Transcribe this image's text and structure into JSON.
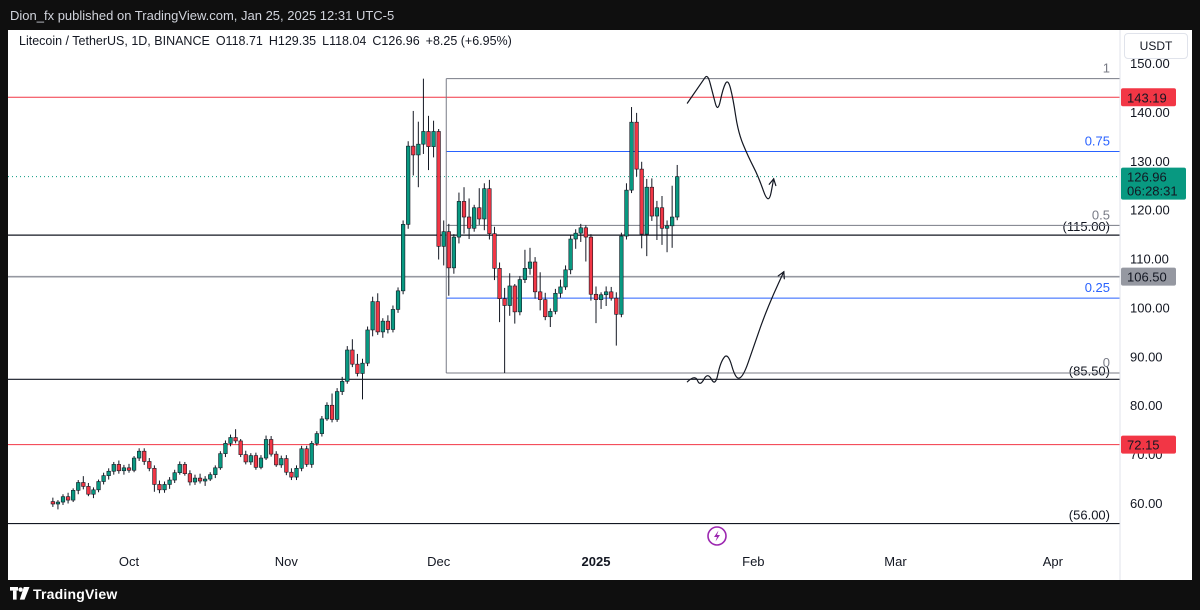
{
  "header": {
    "published": "Dion_fx published on TradingView.com, Jan 25, 2025 12:31 UTC-5"
  },
  "legend": {
    "symbol": "Litecoin / TetherUS, 1D, BINANCE",
    "open": "O118.71",
    "high": "H129.35",
    "low": "L118.04",
    "close": "C126.96",
    "change": "+8.25 (+6.95%)"
  },
  "currency": "USDT",
  "footer": {
    "brand": "TradingView"
  },
  "colors": {
    "up": "#089981",
    "down": "#f23645",
    "fib_blue": "#2962ff",
    "fib_gray": "#787b86",
    "red_line": "#f23645",
    "gray_line": "#9598a1"
  },
  "chart_data": {
    "type": "candlestick",
    "symbol": "LTCUSDT",
    "timeframe": "1D",
    "ylim": [
      55,
      152
    ],
    "y_ticks": [
      60,
      70,
      80,
      90,
      100,
      110,
      120,
      130,
      140,
      150
    ],
    "y_tick_labels": [
      "60.00",
      "70.00",
      "80.00",
      "90.00",
      "100.00",
      "110.00",
      "120.00",
      "130.00",
      "140.00",
      "150.00"
    ],
    "x_tick_labels": [
      "Oct",
      "Nov",
      "Dec",
      "2025",
      "Feb",
      "Mar",
      "Apr"
    ],
    "x_tick_days": [
      8,
      39,
      69,
      100,
      131,
      159,
      190
    ],
    "x_day_range": [
      -7,
      197
    ],
    "last_price": {
      "value": 126.96,
      "label": "126.96",
      "countdown": "06:28:31"
    },
    "horizontal_lines": [
      {
        "value": 143.19,
        "label": "143.19",
        "color": "#f23645",
        "style": "red"
      },
      {
        "value": 106.5,
        "label": "106.50",
        "color": "#9598a1",
        "style": "gray"
      },
      {
        "value": 72.15,
        "label": "72.15",
        "color": "#f23645",
        "style": "red"
      },
      {
        "value": 115.0,
        "label": "(115.00)",
        "style": "black"
      },
      {
        "value": 85.5,
        "label": "(85.50)",
        "style": "black"
      },
      {
        "value": 56.0,
        "label": "(56.00)",
        "style": "black"
      }
    ],
    "fibonacci": {
      "start_day": 70.5,
      "levels": [
        {
          "ratio": "1",
          "value": 147.0,
          "color": "#787b86"
        },
        {
          "ratio": "0.75",
          "value": 132.1,
          "color": "#2962ff"
        },
        {
          "ratio": "0.5",
          "value": 117.0,
          "color": "#787b86"
        },
        {
          "ratio": "0.25",
          "value": 102.1,
          "color": "#2962ff"
        },
        {
          "ratio": "0",
          "value": 86.8,
          "color": "#787b86"
        }
      ]
    },
    "projection_paths": [
      [
        [
          118,
          142
        ],
        [
          121,
          146.5
        ],
        [
          122,
          148
        ],
        [
          123,
          144
        ],
        [
          124,
          140
        ],
        [
          125,
          145
        ],
        [
          126,
          147
        ],
        [
          127,
          143
        ],
        [
          128,
          136
        ],
        [
          130,
          131
        ],
        [
          132,
          127
        ],
        [
          134,
          121
        ],
        [
          135,
          126.5
        ]
      ],
      [
        [
          118,
          85
        ],
        [
          119.5,
          86.5
        ],
        [
          120.5,
          84
        ],
        [
          122,
          87
        ],
        [
          123.5,
          84
        ],
        [
          124.5,
          89
        ],
        [
          126,
          91
        ],
        [
          127.5,
          85.5
        ],
        [
          129,
          86
        ],
        [
          131,
          92
        ],
        [
          133,
          98
        ],
        [
          135,
          103
        ],
        [
          137,
          107.5
        ]
      ]
    ],
    "candles": [
      [
        -7,
        60.5,
        61.3,
        59.4,
        60.0
      ],
      [
        -6,
        60.0,
        60.8,
        58.9,
        60.4
      ],
      [
        -5,
        60.4,
        62.0,
        59.8,
        61.5
      ],
      [
        -4,
        61.5,
        62.3,
        60.1,
        60.8
      ],
      [
        -3,
        60.8,
        63.2,
        60.4,
        62.8
      ],
      [
        -2,
        62.8,
        64.9,
        62.0,
        64.4
      ],
      [
        -1,
        64.4,
        65.7,
        63.0,
        63.6
      ],
      [
        0,
        63.6,
        64.3,
        61.6,
        62.0
      ],
      [
        1,
        62.0,
        63.4,
        61.2,
        62.9
      ],
      [
        2,
        62.9,
        65.0,
        62.4,
        64.6
      ],
      [
        3,
        64.6,
        66.4,
        64.0,
        65.8
      ],
      [
        4,
        65.8,
        67.3,
        65.0,
        66.7
      ],
      [
        5,
        66.7,
        68.6,
        66.0,
        68.1
      ],
      [
        6,
        68.1,
        68.9,
        66.2,
        66.8
      ],
      [
        7,
        66.8,
        68.0,
        66.0,
        67.4
      ],
      [
        8,
        67.4,
        68.2,
        66.4,
        66.9
      ],
      [
        9,
        66.9,
        69.8,
        66.5,
        69.4
      ],
      [
        10,
        69.4,
        71.4,
        68.8,
        70.8
      ],
      [
        11,
        70.8,
        71.4,
        68.0,
        68.7
      ],
      [
        12,
        68.7,
        69.4,
        66.7,
        67.3
      ],
      [
        13,
        67.3,
        67.9,
        62.5,
        64.0
      ],
      [
        14,
        64.0,
        64.8,
        62.2,
        62.9
      ],
      [
        15,
        62.9,
        64.6,
        62.3,
        64.0
      ],
      [
        16,
        64.0,
        65.5,
        63.1,
        64.9
      ],
      [
        17,
        64.9,
        67.0,
        64.3,
        66.4
      ],
      [
        18,
        66.4,
        68.7,
        66.0,
        68.1
      ],
      [
        19,
        68.1,
        68.6,
        65.8,
        66.2
      ],
      [
        20,
        66.2,
        66.9,
        63.8,
        64.5
      ],
      [
        21,
        64.5,
        66.0,
        63.9,
        65.3
      ],
      [
        22,
        65.3,
        66.2,
        64.2,
        64.7
      ],
      [
        23,
        64.7,
        65.7,
        63.7,
        65.1
      ],
      [
        24,
        65.1,
        66.5,
        64.7,
        66.0
      ],
      [
        25,
        66.0,
        67.9,
        65.3,
        67.4
      ],
      [
        26,
        67.4,
        70.8,
        67.0,
        70.3
      ],
      [
        27,
        70.3,
        73.0,
        69.6,
        72.4
      ],
      [
        28,
        72.4,
        74.2,
        71.8,
        73.6
      ],
      [
        29,
        73.6,
        75.3,
        72.4,
        72.9
      ],
      [
        30,
        72.9,
        73.3,
        69.6,
        70.1
      ],
      [
        31,
        70.1,
        70.9,
        68.1,
        68.6
      ],
      [
        32,
        68.6,
        70.4,
        68.0,
        69.9
      ],
      [
        33,
        69.9,
        70.5,
        67.0,
        67.5
      ],
      [
        34,
        67.5,
        70.0,
        67.1,
        69.4
      ],
      [
        35,
        69.4,
        74.0,
        69.0,
        73.2
      ],
      [
        36,
        73.2,
        73.9,
        69.7,
        70.2
      ],
      [
        37,
        70.2,
        70.8,
        67.6,
        68.0
      ],
      [
        38,
        68.0,
        69.9,
        67.4,
        69.3
      ],
      [
        39,
        69.3,
        70.0,
        65.9,
        66.5
      ],
      [
        40,
        66.5,
        67.3,
        64.9,
        65.5
      ],
      [
        41,
        65.5,
        67.9,
        64.9,
        67.3
      ],
      [
        42,
        67.3,
        71.9,
        66.7,
        71.3
      ],
      [
        43,
        71.3,
        71.9,
        67.6,
        68.1
      ],
      [
        44,
        68.1,
        72.9,
        67.4,
        72.4
      ],
      [
        45,
        72.4,
        74.9,
        71.9,
        74.4
      ],
      [
        46,
        74.4,
        78.0,
        73.8,
        77.4
      ],
      [
        47,
        77.4,
        80.8,
        77.0,
        80.2
      ],
      [
        48,
        80.2,
        82.6,
        76.7,
        77.3
      ],
      [
        49,
        77.3,
        83.7,
        76.8,
        83.0
      ],
      [
        50,
        83.0,
        86.0,
        82.3,
        85.1
      ],
      [
        51,
        85.1,
        92.3,
        84.6,
        91.5
      ],
      [
        52,
        91.5,
        93.7,
        88.0,
        88.6
      ],
      [
        53,
        88.6,
        90.7,
        86.1,
        86.7
      ],
      [
        54,
        86.7,
        89.7,
        81.4,
        88.8
      ],
      [
        55,
        88.8,
        96.3,
        88.2,
        95.6
      ],
      [
        56,
        95.6,
        102.4,
        94.3,
        101.4
      ],
      [
        57,
        101.4,
        103.1,
        94.6,
        95.2
      ],
      [
        58,
        95.2,
        98.0,
        94.0,
        97.4
      ],
      [
        59,
        97.4,
        98.6,
        94.9,
        95.7
      ],
      [
        60,
        95.7,
        100.6,
        95.1,
        99.8
      ],
      [
        61,
        99.8,
        104.3,
        99.1,
        103.6
      ],
      [
        62,
        103.6,
        118.0,
        102.9,
        117.2
      ],
      [
        63,
        117.2,
        134.2,
        116.3,
        133.2
      ],
      [
        64,
        133.2,
        140.4,
        127.2,
        131.4
      ],
      [
        65,
        131.4,
        138.2,
        124.8,
        133.6
      ],
      [
        66,
        133.6,
        147.0,
        131.6,
        136.2
      ],
      [
        67,
        136.2,
        139.4,
        128.3,
        133.1
      ],
      [
        68,
        133.1,
        138.4,
        130.9,
        136.2
      ],
      [
        69,
        136.2,
        136.7,
        110.0,
        112.7
      ],
      [
        70,
        112.7,
        118.0,
        108.8,
        115.7
      ],
      [
        71,
        115.7,
        117.3,
        102.6,
        108.3
      ],
      [
        72,
        108.3,
        115.2,
        107.1,
        114.6
      ],
      [
        73,
        114.6,
        123.7,
        113.3,
        121.9
      ],
      [
        74,
        121.9,
        124.8,
        115.3,
        118.7
      ],
      [
        75,
        118.7,
        122.5,
        114.2,
        116.4
      ],
      [
        76,
        116.4,
        121.2,
        115.7,
        120.6
      ],
      [
        77,
        120.6,
        124.6,
        117.1,
        118.3
      ],
      [
        78,
        118.3,
        125.6,
        116.0,
        124.5
      ],
      [
        79,
        124.5,
        126.3,
        114.1,
        115.3
      ],
      [
        80,
        115.3,
        116.7,
        105.8,
        108.2
      ],
      [
        81,
        108.2,
        109.4,
        97.2,
        102.0
      ],
      [
        82,
        102.0,
        104.2,
        86.8,
        100.6
      ],
      [
        83,
        100.6,
        107.2,
        98.5,
        104.6
      ],
      [
        84,
        104.6,
        105.0,
        96.9,
        99.3
      ],
      [
        85,
        99.3,
        106.6,
        98.6,
        105.9
      ],
      [
        86,
        105.9,
        112.0,
        105.2,
        108.2
      ],
      [
        87,
        108.2,
        112.4,
        106.9,
        109.5
      ],
      [
        88,
        109.5,
        110.5,
        102.0,
        103.4
      ],
      [
        89,
        103.4,
        107.4,
        99.6,
        101.8
      ],
      [
        90,
        101.8,
        103.2,
        97.6,
        98.3
      ],
      [
        91,
        98.3,
        100.0,
        96.2,
        99.4
      ],
      [
        92,
        99.4,
        104.0,
        98.8,
        103.1
      ],
      [
        93,
        103.1,
        105.9,
        102.2,
        104.4
      ],
      [
        94,
        104.4,
        108.8,
        103.8,
        107.9
      ],
      [
        95,
        107.9,
        115.0,
        107.0,
        114.2
      ],
      [
        96,
        114.2,
        116.2,
        112.2,
        115.4
      ],
      [
        97,
        115.4,
        117.3,
        113.6,
        116.5
      ],
      [
        98,
        116.5,
        117.0,
        109.6,
        114.6
      ],
      [
        99,
        114.6,
        115.2,
        101.6,
        102.9
      ],
      [
        100,
        102.9,
        104.5,
        97.0,
        101.8
      ],
      [
        101,
        101.8,
        103.3,
        99.9,
        102.8
      ],
      [
        102,
        102.8,
        104.5,
        100.5,
        103.4
      ],
      [
        103,
        103.4,
        104.4,
        101.6,
        102.1
      ],
      [
        104,
        102.1,
        103.3,
        92.4,
        98.8
      ],
      [
        105,
        98.8,
        115.5,
        98.2,
        114.8
      ],
      [
        106,
        114.8,
        125.6,
        114.1,
        124.2
      ],
      [
        107,
        124.2,
        141.2,
        123.6,
        138.1
      ],
      [
        108,
        138.1,
        140.0,
        127.0,
        128.5
      ],
      [
        109,
        128.5,
        130.0,
        112.3,
        115.2
      ],
      [
        110,
        115.2,
        126.5,
        110.7,
        124.8
      ],
      [
        111,
        124.8,
        126.6,
        117.9,
        118.9
      ],
      [
        112,
        118.9,
        122.0,
        114.0,
        120.6
      ],
      [
        113,
        120.6,
        123.0,
        113.0,
        116.4
      ],
      [
        114,
        116.4,
        118.0,
        111.5,
        116.9
      ],
      [
        115,
        116.9,
        125.1,
        112.4,
        118.7
      ],
      [
        116,
        118.7,
        129.35,
        118.04,
        126.96
      ]
    ]
  }
}
